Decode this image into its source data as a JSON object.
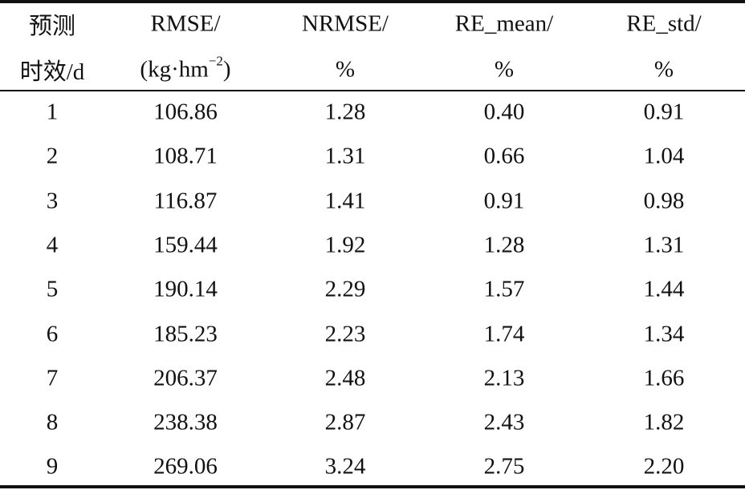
{
  "table": {
    "header": [
      {
        "top": "预测",
        "bottom": "时效/d"
      },
      {
        "top": "RMSE/",
        "bottom": "(kg·hm",
        "bottom_sup": "−2",
        "bottom_end": ")"
      },
      {
        "top": "NRMSE/",
        "bottom": "%"
      },
      {
        "top": "RE_mean/",
        "bottom": "%"
      },
      {
        "top": "RE_std/",
        "bottom": "%"
      }
    ],
    "rows": [
      [
        "1",
        "106.86",
        "1.28",
        "0.40",
        "0.91"
      ],
      [
        "2",
        "108.71",
        "1.31",
        "0.66",
        "1.04"
      ],
      [
        "3",
        "116.87",
        "1.41",
        "0.91",
        "0.98"
      ],
      [
        "4",
        "159.44",
        "1.92",
        "1.28",
        "1.31"
      ],
      [
        "5",
        "190.14",
        "2.29",
        "1.57",
        "1.44"
      ],
      [
        "6",
        "185.23",
        "2.23",
        "1.74",
        "1.34"
      ],
      [
        "7",
        "206.37",
        "2.48",
        "2.13",
        "1.66"
      ],
      [
        "8",
        "238.38",
        "2.87",
        "2.43",
        "1.82"
      ],
      [
        "9",
        "269.06",
        "3.24",
        "2.75",
        "2.20"
      ]
    ]
  }
}
